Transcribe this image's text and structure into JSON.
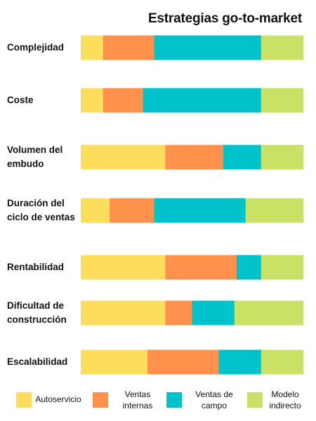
{
  "chart_data": {
    "type": "bar",
    "stacked": true,
    "orientation": "horizontal",
    "normalized": true,
    "title": "Estrategias go-to-market",
    "categories": [
      "Complejidad",
      "Coste",
      "Volumen del embudo",
      "Duración del ciclo de ventas",
      "Rentabilidad",
      "Dificultad de construcción",
      "Escalabilidad"
    ],
    "category_lines": [
      [
        "Complejidad"
      ],
      [
        "Coste"
      ],
      [
        "Volumen del",
        "embudo"
      ],
      [
        "Duración del",
        "ciclo de ventas"
      ],
      [
        "Rentabilidad"
      ],
      [
        "Dificultad de",
        "construcción"
      ],
      [
        "Escalabilidad"
      ]
    ],
    "series": [
      {
        "name": "Autoservicio",
        "color": "#FFDD5C",
        "values": [
          10,
          10,
          38,
          13,
          38,
          38,
          30
        ]
      },
      {
        "name": "Ventas internas",
        "color": "#FF914D",
        "values": [
          23,
          18,
          26,
          20,
          32,
          12,
          32
        ]
      },
      {
        "name": "Ventas de campo",
        "color": "#00C2CB",
        "values": [
          48,
          53,
          17,
          41,
          11,
          19,
          19
        ]
      },
      {
        "name": "Modelo indirecto",
        "color": "#C9E265",
        "values": [
          19,
          19,
          19,
          26,
          19,
          31,
          19
        ]
      }
    ],
    "legend_position": "bottom",
    "legend_lines": [
      [
        "Autoservicio"
      ],
      [
        "Ventas",
        "internas"
      ],
      [
        "Ventas de",
        "campo"
      ],
      [
        "Modelo",
        "indirecto"
      ]
    ],
    "grid": false
  }
}
